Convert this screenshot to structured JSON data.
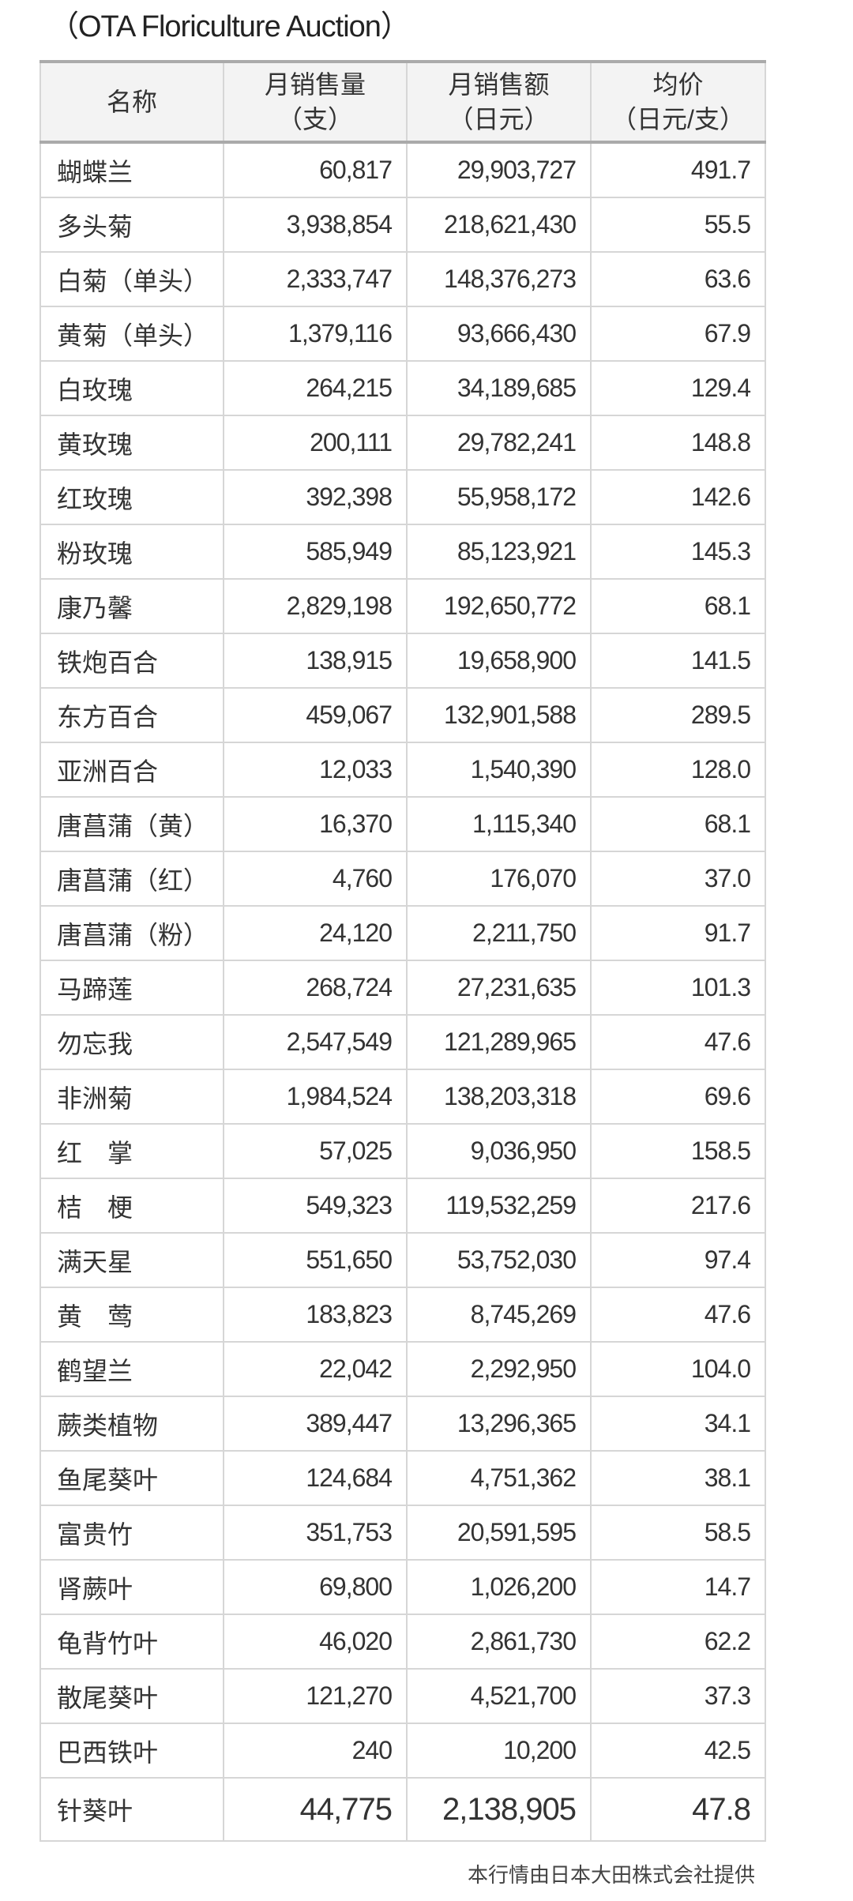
{
  "title": "（OTA Floriculture Auction）",
  "table": {
    "headers": [
      {
        "line1": "名称",
        "line2": ""
      },
      {
        "line1": "月销售量",
        "line2": "（支）"
      },
      {
        "line1": "月销售额",
        "line2": "（日元）"
      },
      {
        "line1": "均价",
        "line2": "（日元/支）"
      }
    ],
    "rows": [
      [
        "蝴蝶兰",
        "60,817",
        "29,903,727",
        "491.7"
      ],
      [
        "多头菊",
        "3,938,854",
        "218,621,430",
        "55.5"
      ],
      [
        "白菊（单头）",
        "2,333,747",
        "148,376,273",
        "63.6"
      ],
      [
        "黄菊（单头）",
        "1,379,116",
        "93,666,430",
        "67.9"
      ],
      [
        "白玫瑰",
        "264,215",
        "34,189,685",
        "129.4"
      ],
      [
        "黄玫瑰",
        "200,111",
        "29,782,241",
        "148.8"
      ],
      [
        "红玫瑰",
        "392,398",
        "55,958,172",
        "142.6"
      ],
      [
        "粉玫瑰",
        "585,949",
        "85,123,921",
        "145.3"
      ],
      [
        "康乃馨",
        "2,829,198",
        "192,650,772",
        "68.1"
      ],
      [
        "铁炮百合",
        "138,915",
        "19,658,900",
        "141.5"
      ],
      [
        "东方百合",
        "459,067",
        "132,901,588",
        "289.5"
      ],
      [
        "亚洲百合",
        "12,033",
        "1,540,390",
        "128.0"
      ],
      [
        "唐菖蒲（黄）",
        "16,370",
        "1,115,340",
        "68.1"
      ],
      [
        "唐菖蒲（红）",
        "4,760",
        "176,070",
        "37.0"
      ],
      [
        "唐菖蒲（粉）",
        "24,120",
        "2,211,750",
        "91.7"
      ],
      [
        "马蹄莲",
        "268,724",
        "27,231,635",
        "101.3"
      ],
      [
        "勿忘我",
        "2,547,549",
        "121,289,965",
        "47.6"
      ],
      [
        "非洲菊",
        "1,984,524",
        "138,203,318",
        "69.6"
      ],
      [
        "红　掌",
        "57,025",
        "9,036,950",
        "158.5"
      ],
      [
        "桔　梗",
        "549,323",
        "119,532,259",
        "217.6"
      ],
      [
        "满天星",
        "551,650",
        "53,752,030",
        "97.4"
      ],
      [
        "黄　莺",
        "183,823",
        "8,745,269",
        "47.6"
      ],
      [
        "鹤望兰",
        "22,042",
        "2,292,950",
        "104.0"
      ],
      [
        "蕨类植物",
        "389,447",
        "13,296,365",
        "34.1"
      ],
      [
        "鱼尾葵叶",
        "124,684",
        "4,751,362",
        "38.1"
      ],
      [
        "富贵竹",
        "351,753",
        "20,591,595",
        "58.5"
      ],
      [
        "肾蕨叶",
        "69,800",
        "1,026,200",
        "14.7"
      ],
      [
        "龟背竹叶",
        "46,020",
        "2,861,730",
        "62.2"
      ],
      [
        "散尾葵叶",
        "121,270",
        "4,521,700",
        "37.3"
      ],
      [
        "巴西铁叶",
        "240",
        "10,200",
        "42.5"
      ],
      [
        "针葵叶",
        "44,775",
        "2,138,905",
        "47.8"
      ]
    ]
  },
  "footer": "本行情由日本大田株式会社提供"
}
